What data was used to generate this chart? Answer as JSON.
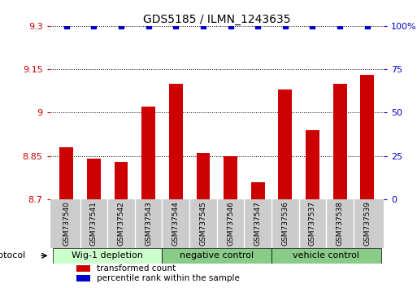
{
  "title": "GDS5185 / ILMN_1243635",
  "samples": [
    "GSM737540",
    "GSM737541",
    "GSM737542",
    "GSM737543",
    "GSM737544",
    "GSM737545",
    "GSM737546",
    "GSM737547",
    "GSM737536",
    "GSM737537",
    "GSM737538",
    "GSM737539"
  ],
  "bar_values": [
    8.88,
    8.84,
    8.83,
    9.02,
    9.1,
    8.86,
    8.85,
    8.76,
    9.08,
    8.94,
    9.1,
    9.13
  ],
  "percentile_values": [
    100,
    100,
    100,
    100,
    100,
    100,
    100,
    100,
    100,
    100,
    100,
    100
  ],
  "bar_color": "#cc0000",
  "percentile_color": "#0000cc",
  "ylim_left": [
    8.7,
    9.3
  ],
  "ylim_right": [
    0,
    100
  ],
  "yticks_left": [
    8.7,
    8.85,
    9.0,
    9.15,
    9.3
  ],
  "yticks_right": [
    0,
    25,
    50,
    75,
    100
  ],
  "ytick_labels_left": [
    "8.7",
    "8.85",
    "9",
    "9.15",
    "9.3"
  ],
  "ytick_labels_right": [
    "0",
    "25",
    "50",
    "75",
    "100%"
  ],
  "groups": [
    {
      "label": "Wig-1 depletion",
      "start": 0,
      "end": 3
    },
    {
      "label": "negative control",
      "start": 4,
      "end": 7
    },
    {
      "label": "vehicle control",
      "start": 8,
      "end": 11
    }
  ],
  "group_bg_light": "#ccffcc",
  "group_bg_dark": "#88cc88",
  "gray_box_color": "#cccccc",
  "legend_items": [
    {
      "color": "#cc0000",
      "label": "transformed count"
    },
    {
      "color": "#0000cc",
      "label": "percentile rank within the sample"
    }
  ],
  "protocol_label": "protocol",
  "left_tick_color": "#cc0000",
  "right_tick_color": "#0000cc",
  "background_color": "#ffffff",
  "bar_width": 0.5
}
